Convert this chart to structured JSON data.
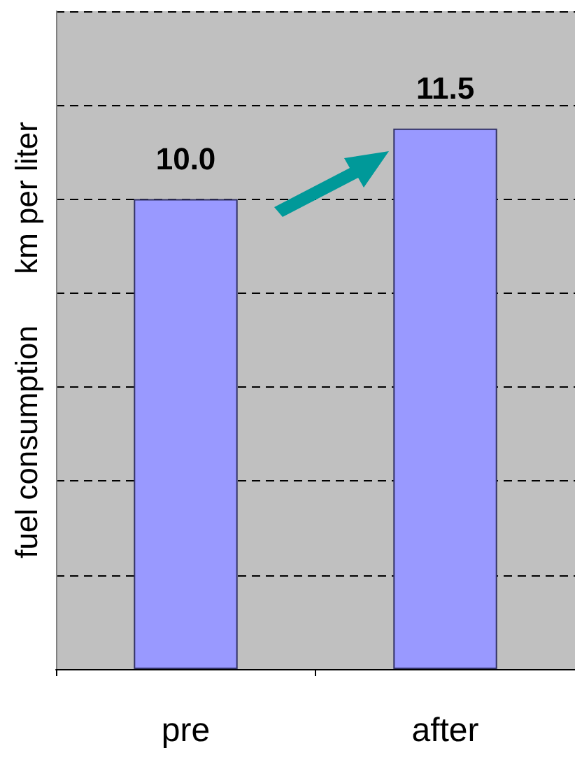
{
  "chart_data": {
    "type": "bar",
    "ylabel": "fuel consumption      km per liter",
    "categories": [
      "pre",
      "after"
    ],
    "values": [
      10.0,
      11.5
    ],
    "color": "#9999ff",
    "ylim": [
      0,
      14
    ],
    "yticks": [
      {
        "value": 0,
        "label": null
      },
      {
        "value": 2,
        "label": null
      },
      {
        "value": 4,
        "label": null
      },
      {
        "value": 6,
        "label": null
      },
      {
        "value": 8,
        "label": null
      },
      {
        "value": 10,
        "label": null
      },
      {
        "value": 12,
        "label": null
      },
      {
        "value": 14,
        "label": null
      }
    ],
    "grid": "y",
    "tick_labels": "x",
    "value_labels": [
      "10.0",
      "11.5"
    ]
  }
}
